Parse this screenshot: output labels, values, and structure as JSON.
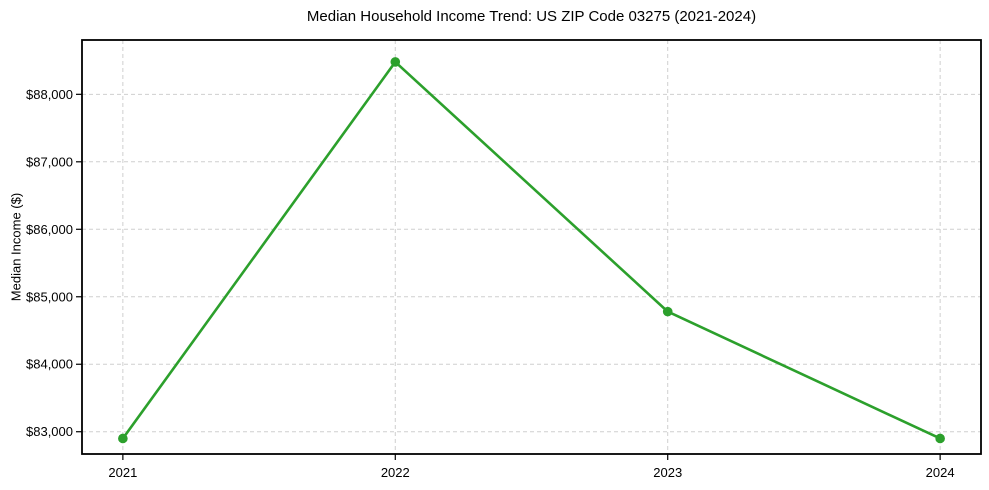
{
  "figure": {
    "background": "#ffffff"
  },
  "chart_data": {
    "type": "line",
    "title": "Median Household Income Trend: US ZIP Code 03275 (2021-2024)",
    "xlabel": "",
    "ylabel": "Median Income ($)",
    "x_tick_labels": [
      "2021",
      "2022",
      "2023",
      "2024"
    ],
    "series": [
      {
        "name": "median-household-income",
        "x": [
          2021,
          2022,
          2023,
          2024
        ],
        "values": [
          82900,
          88480,
          84780,
          82900
        ],
        "color": "#2ca02c",
        "marker": "circle"
      }
    ],
    "ylim": [
      82670,
      88805
    ],
    "yticks": [
      83000,
      84000,
      85000,
      86000,
      87000,
      88000
    ],
    "ytick_labels": [
      "$83,000",
      "$84,000",
      "$85,000",
      "$86,000",
      "$87,000",
      "$88,000"
    ],
    "x_margin": 0.05,
    "grid": "both",
    "grid_style": "dashed",
    "grid_color": "#cfcfcf",
    "axis_color": "#000000",
    "legend_position": "none"
  }
}
